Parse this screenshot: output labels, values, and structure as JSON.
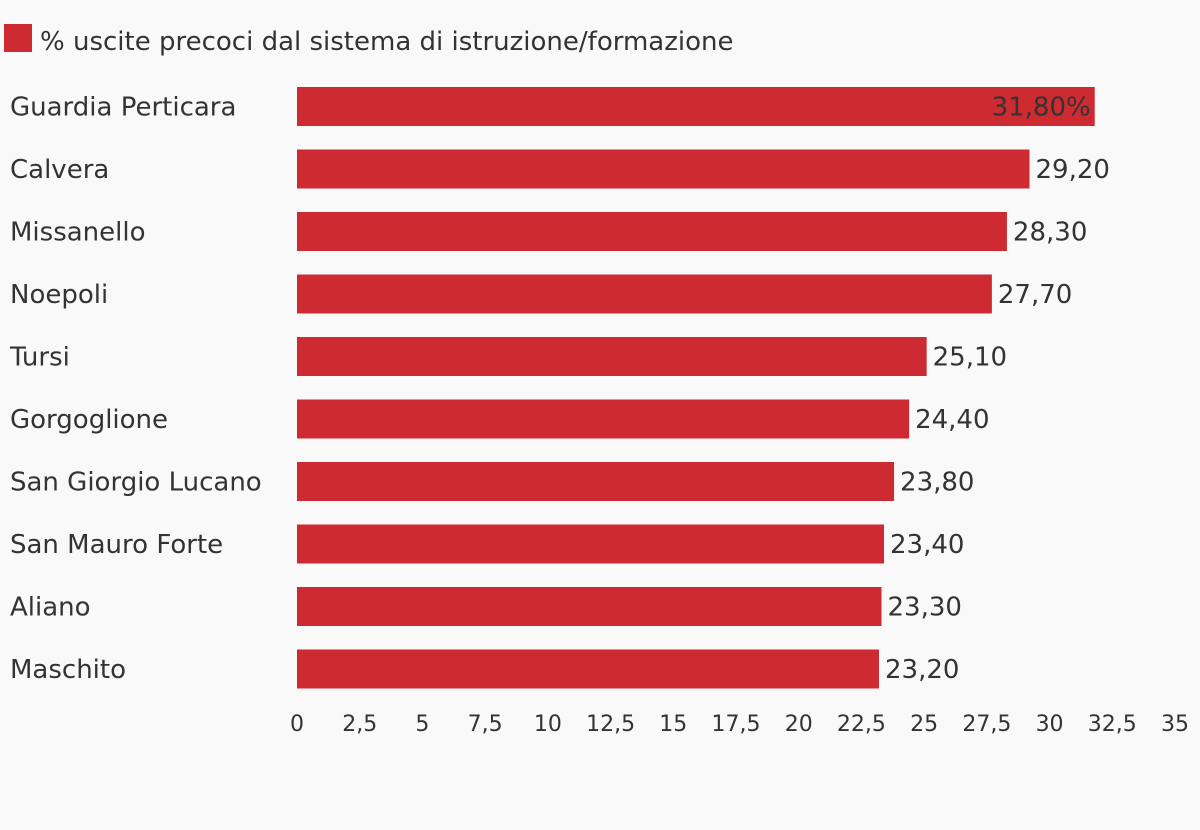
{
  "chart_data": {
    "type": "bar",
    "orientation": "horizontal",
    "series": [
      {
        "name": "% uscite precoci dal sistema di istruzione/formazione",
        "values": [
          31.8,
          29.2,
          28.3,
          27.7,
          25.1,
          24.4,
          23.8,
          23.4,
          23.3,
          23.2
        ]
      }
    ],
    "categories": [
      "Guardia Perticara",
      "Calvera",
      "Missanello",
      "Noepoli",
      "Tursi",
      "Gorgoglione",
      "San Giorgio Lucano",
      "San Mauro Forte",
      "Aliano",
      "Maschito"
    ],
    "value_labels": [
      "31,80%",
      "29,20",
      "28,30",
      "27,70",
      "25,10",
      "24,40",
      "23,80",
      "23,40",
      "23,30",
      "23,20"
    ],
    "x_ticks": [
      0,
      2.5,
      5,
      7.5,
      10,
      12.5,
      15,
      17.5,
      20,
      22.5,
      25,
      27.5,
      30,
      32.5,
      35
    ],
    "x_tick_labels": [
      "0",
      "2,5",
      "5",
      "7,5",
      "10",
      "12,5",
      "15",
      "17,5",
      "20",
      "22,5",
      "25",
      "27,5",
      "30",
      "32,5",
      "35"
    ],
    "xlim": [
      0,
      35
    ],
    "legend_position": "top-left",
    "grid": false,
    "colors": {
      "bar": "#ce2a31",
      "text": "#333333",
      "background": "#f9f9f9"
    }
  }
}
